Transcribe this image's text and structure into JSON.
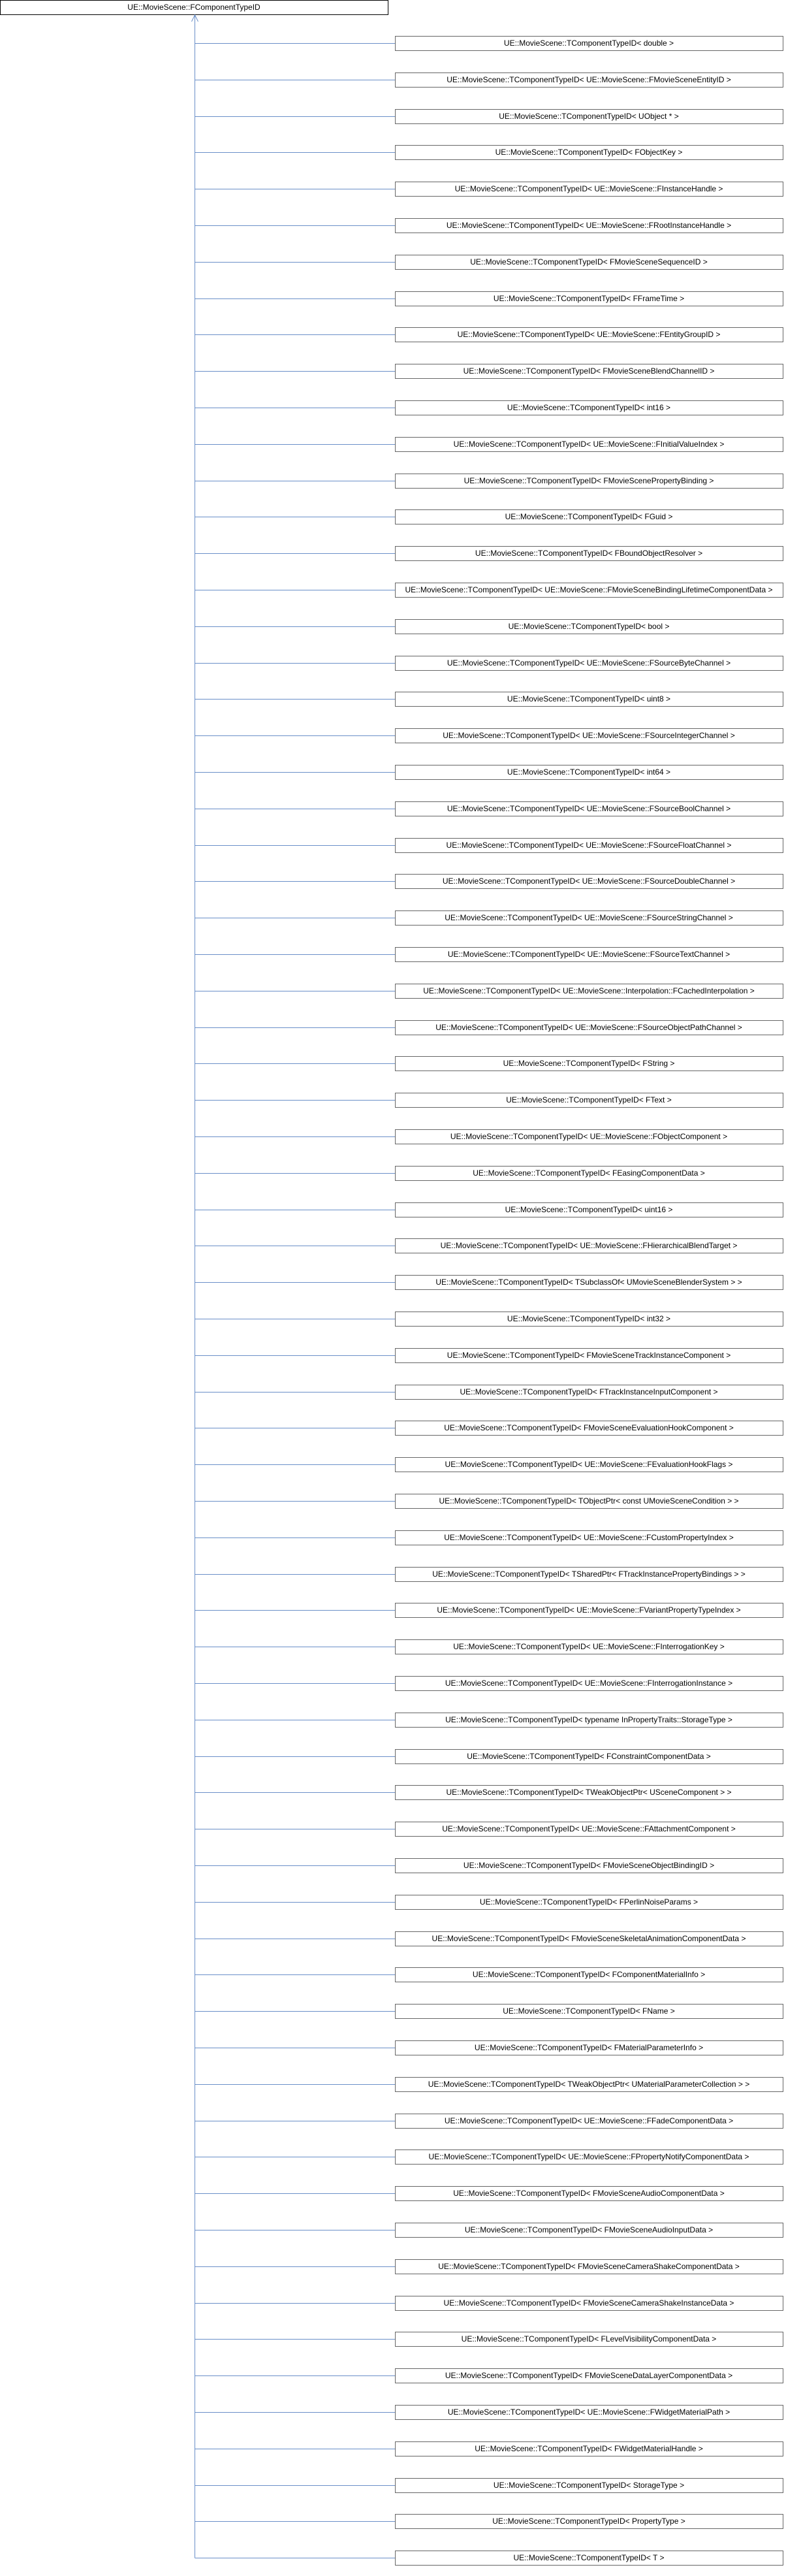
{
  "root": "UE::MovieScene::FComponentTypeID",
  "children": [
    "UE::MovieScene::TComponentTypeID< double >",
    "UE::MovieScene::TComponentTypeID< UE::MovieScene::FMovieSceneEntityID >",
    "UE::MovieScene::TComponentTypeID< UObject * >",
    "UE::MovieScene::TComponentTypeID< FObjectKey >",
    "UE::MovieScene::TComponentTypeID< UE::MovieScene::FInstanceHandle >",
    "UE::MovieScene::TComponentTypeID< UE::MovieScene::FRootInstanceHandle >",
    "UE::MovieScene::TComponentTypeID< FMovieSceneSequenceID >",
    "UE::MovieScene::TComponentTypeID< FFrameTime >",
    "UE::MovieScene::TComponentTypeID< UE::MovieScene::FEntityGroupID >",
    "UE::MovieScene::TComponentTypeID< FMovieSceneBlendChannelID >",
    "UE::MovieScene::TComponentTypeID< int16 >",
    "UE::MovieScene::TComponentTypeID< UE::MovieScene::FInitialValueIndex >",
    "UE::MovieScene::TComponentTypeID< FMovieScenePropertyBinding >",
    "UE::MovieScene::TComponentTypeID< FGuid >",
    "UE::MovieScene::TComponentTypeID< FBoundObjectResolver >",
    "UE::MovieScene::TComponentTypeID< UE::MovieScene::FMovieSceneBindingLifetimeComponentData >",
    "UE::MovieScene::TComponentTypeID< bool >",
    "UE::MovieScene::TComponentTypeID< UE::MovieScene::FSourceByteChannel >",
    "UE::MovieScene::TComponentTypeID< uint8 >",
    "UE::MovieScene::TComponentTypeID< UE::MovieScene::FSourceIntegerChannel >",
    "UE::MovieScene::TComponentTypeID< int64 >",
    "UE::MovieScene::TComponentTypeID< UE::MovieScene::FSourceBoolChannel >",
    "UE::MovieScene::TComponentTypeID< UE::MovieScene::FSourceFloatChannel >",
    "UE::MovieScene::TComponentTypeID< UE::MovieScene::FSourceDoubleChannel >",
    "UE::MovieScene::TComponentTypeID< UE::MovieScene::FSourceStringChannel >",
    "UE::MovieScene::TComponentTypeID< UE::MovieScene::FSourceTextChannel >",
    "UE::MovieScene::TComponentTypeID< UE::MovieScene::Interpolation::FCachedInterpolation >",
    "UE::MovieScene::TComponentTypeID< UE::MovieScene::FSourceObjectPathChannel >",
    "UE::MovieScene::TComponentTypeID< FString >",
    "UE::MovieScene::TComponentTypeID< FText >",
    "UE::MovieScene::TComponentTypeID< UE::MovieScene::FObjectComponent >",
    "UE::MovieScene::TComponentTypeID< FEasingComponentData >",
    "UE::MovieScene::TComponentTypeID< uint16 >",
    "UE::MovieScene::TComponentTypeID< UE::MovieScene::FHierarchicalBlendTarget >",
    "UE::MovieScene::TComponentTypeID< TSubclassOf< UMovieSceneBlenderSystem > >",
    "UE::MovieScene::TComponentTypeID< int32 >",
    "UE::MovieScene::TComponentTypeID< FMovieSceneTrackInstanceComponent >",
    "UE::MovieScene::TComponentTypeID< FTrackInstanceInputComponent >",
    "UE::MovieScene::TComponentTypeID< FMovieSceneEvaluationHookComponent >",
    "UE::MovieScene::TComponentTypeID< UE::MovieScene::FEvaluationHookFlags >",
    "UE::MovieScene::TComponentTypeID< TObjectPtr< const UMovieSceneCondition > >",
    "UE::MovieScene::TComponentTypeID< UE::MovieScene::FCustomPropertyIndex >",
    "UE::MovieScene::TComponentTypeID< TSharedPtr< FTrackInstancePropertyBindings > >",
    "UE::MovieScene::TComponentTypeID< UE::MovieScene::FVariantPropertyTypeIndex >",
    "UE::MovieScene::TComponentTypeID< UE::MovieScene::FInterrogationKey >",
    "UE::MovieScene::TComponentTypeID< UE::MovieScene::FInterrogationInstance >",
    "UE::MovieScene::TComponentTypeID< typename InPropertyTraits::StorageType >",
    "UE::MovieScene::TComponentTypeID< FConstraintComponentData >",
    "UE::MovieScene::TComponentTypeID< TWeakObjectPtr< USceneComponent > >",
    "UE::MovieScene::TComponentTypeID< UE::MovieScene::FAttachmentComponent >",
    "UE::MovieScene::TComponentTypeID< FMovieSceneObjectBindingID >",
    "UE::MovieScene::TComponentTypeID< FPerlinNoiseParams >",
    "UE::MovieScene::TComponentTypeID< FMovieSceneSkeletalAnimationComponentData >",
    "UE::MovieScene::TComponentTypeID< FComponentMaterialInfo >",
    "UE::MovieScene::TComponentTypeID< FName >",
    "UE::MovieScene::TComponentTypeID< FMaterialParameterInfo >",
    "UE::MovieScene::TComponentTypeID< TWeakObjectPtr< UMaterialParameterCollection > >",
    "UE::MovieScene::TComponentTypeID< UE::MovieScene::FFadeComponentData >",
    "UE::MovieScene::TComponentTypeID< UE::MovieScene::FPropertyNotifyComponentData >",
    "UE::MovieScene::TComponentTypeID< FMovieSceneAudioComponentData >",
    "UE::MovieScene::TComponentTypeID< FMovieSceneAudioInputData >",
    "UE::MovieScene::TComponentTypeID< FMovieSceneCameraShakeComponentData >",
    "UE::MovieScene::TComponentTypeID< FMovieSceneCameraShakeInstanceData >",
    "UE::MovieScene::TComponentTypeID< FLevelVisibilityComponentData >",
    "UE::MovieScene::TComponentTypeID< FMovieSceneDataLayerComponentData >",
    "UE::MovieScene::TComponentTypeID< UE::MovieScene::FWidgetMaterialPath >",
    "UE::MovieScene::TComponentTypeID< FWidgetMaterialHandle >",
    "UE::MovieScene::TComponentTypeID< StorageType >",
    "UE::MovieScene::TComponentTypeID< PropertyType >",
    "UE::MovieScene::TComponentTypeID< T >"
  ]
}
